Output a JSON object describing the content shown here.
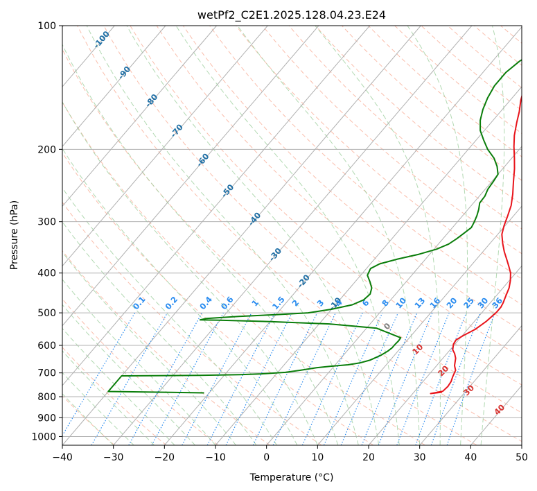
{
  "chart_data": {
    "type": "line",
    "subtype": "skew-T log-P diagram",
    "title": "wetPf2_C2E1.2025.128.04.23.E24",
    "xlabel": "Temperature (°C)",
    "ylabel": "Pressure (hPa)",
    "xlim": [
      -40,
      50
    ],
    "ylim": [
      1050,
      100
    ],
    "y_scale": "log",
    "grid": true,
    "xticks": [
      "−40",
      "−30",
      "−20",
      "−10",
      "0",
      "10",
      "20",
      "30",
      "40",
      "50"
    ],
    "yticks": [
      "100",
      "200",
      "300",
      "400",
      "500",
      "600",
      "700",
      "800",
      "900",
      "1000"
    ],
    "colors": {
      "temperature": "#e8141b",
      "dewpoint": "#0a7d0a",
      "isotherm_label": "#1f6fa5",
      "mixing_ratio": "#2a8cf0",
      "dry_adiabat": "#f8a890",
      "moist_adiabat": "#9fd09f",
      "moist_label": "#d7302d",
      "freezing_label": "#7f7f7f",
      "grid": "#b0b0b0"
    },
    "isotherm_labels": [
      "-100",
      "-90",
      "-80",
      "-70",
      "-60",
      "-50",
      "-40",
      "-30",
      "-20",
      "-10"
    ],
    "mixing_ratio_labels": [
      "0.1",
      "0.2",
      "0.4",
      "0.6",
      "1",
      "1.5",
      "2",
      "3",
      "4",
      "6",
      "8",
      "10",
      "13",
      "16",
      "20",
      "25",
      "30",
      "36"
    ],
    "moist_adiabat_labels": [
      "0",
      "10",
      "20",
      "30",
      "40"
    ],
    "series": [
      {
        "key": "temperature",
        "points": [
          [
            25.5,
            780
          ],
          [
            24.5,
            783
          ],
          [
            23.5,
            786
          ],
          [
            25.5,
            776
          ],
          [
            25.7,
            755
          ],
          [
            25.5,
            735
          ],
          [
            25,
            715
          ],
          [
            24.5,
            690
          ],
          [
            23.5,
            672
          ],
          [
            22.5,
            645
          ],
          [
            21.5,
            628
          ],
          [
            20.5,
            615
          ],
          [
            19.7,
            596
          ],
          [
            19.5,
            582
          ],
          [
            20.2,
            568
          ],
          [
            21.5,
            548
          ],
          [
            22.3,
            525
          ],
          [
            22.8,
            498
          ],
          [
            22.8,
            484
          ],
          [
            22.5,
            472
          ],
          [
            21.9,
            455
          ],
          [
            21.2,
            435
          ],
          [
            20.2,
            417
          ],
          [
            19,
            400
          ],
          [
            17.5,
            385
          ],
          [
            16,
            371
          ],
          [
            14.2,
            355
          ],
          [
            12.5,
            339
          ],
          [
            10.8,
            322
          ],
          [
            9.8,
            307
          ],
          [
            8.9,
            291
          ],
          [
            7.8,
            274
          ],
          [
            6.2,
            257
          ],
          [
            4.3,
            240
          ],
          [
            2.3,
            223
          ],
          [
            0.5,
            210
          ],
          [
            -1.5,
            197
          ],
          [
            -3.3,
            185
          ],
          [
            -5,
            172
          ],
          [
            -6.3,
            162
          ],
          [
            -7.9,
            152
          ],
          [
            -9.3,
            142
          ],
          [
            -11,
            132
          ],
          [
            -12.3,
            127
          ],
          [
            -12.7,
            124
          ],
          [
            -12.3,
            121
          ],
          [
            -11.8,
            118
          ],
          [
            -11,
            114
          ],
          [
            -10,
            110
          ],
          [
            -8.5,
            106
          ],
          [
            -7,
            102
          ],
          [
            -6.5,
            100
          ]
        ]
      },
      {
        "key": "dewpoint",
        "points": [
          [
            -21,
            783
          ],
          [
            -40,
            777
          ],
          [
            -40,
            712
          ],
          [
            -25,
            710
          ],
          [
            -17,
            707
          ],
          [
            -13,
            704
          ],
          [
            -8.5,
            698
          ],
          [
            -6,
            690
          ],
          [
            -3.2,
            680
          ],
          [
            -0.8,
            675
          ],
          [
            2.5,
            669
          ],
          [
            4.5,
            662
          ],
          [
            6,
            652
          ],
          [
            7.3,
            635
          ],
          [
            8,
            620
          ],
          [
            8.3,
            608
          ],
          [
            8.3,
            595
          ],
          [
            8.4,
            585
          ],
          [
            8.3,
            575
          ],
          [
            2,
            545
          ],
          [
            -8,
            532
          ],
          [
            -20,
            525
          ],
          [
            -30,
            521
          ],
          [
            -34,
            520
          ],
          [
            -33,
            516
          ],
          [
            -27,
            510
          ],
          [
            -20,
            505
          ],
          [
            -14,
            500
          ],
          [
            -10,
            490
          ],
          [
            -6.7,
            478
          ],
          [
            -5.3,
            465
          ],
          [
            -5,
            450
          ],
          [
            -5.7,
            435
          ],
          [
            -7.1,
            420
          ],
          [
            -8.7,
            405
          ],
          [
            -9.2,
            390
          ],
          [
            -8.2,
            380
          ],
          [
            -5.5,
            370
          ],
          [
            -2.1,
            360
          ],
          [
            0.5,
            350
          ],
          [
            2,
            340
          ],
          [
            2.7,
            330
          ],
          [
            3.2,
            320
          ],
          [
            3.7,
            310
          ],
          [
            3.3,
            300
          ],
          [
            2.8,
            290
          ],
          [
            2.1,
            280
          ],
          [
            1.2,
            270
          ],
          [
            1.1,
            260
          ],
          [
            0.5,
            250
          ],
          [
            0.3,
            240
          ],
          [
            0,
            230
          ],
          [
            -1.5,
            220
          ],
          [
            -3.5,
            210
          ],
          [
            -6.2,
            200
          ],
          [
            -8.5,
            190
          ],
          [
            -10.8,
            180
          ],
          [
            -12.5,
            170
          ],
          [
            -13.8,
            160
          ],
          [
            -14.8,
            150
          ],
          [
            -15.5,
            140
          ],
          [
            -15.5,
            130
          ],
          [
            -14.7,
            122
          ],
          [
            -13.3,
            116
          ],
          [
            -11.6,
            112
          ],
          [
            -10.5,
            108
          ],
          [
            -10.5,
            104
          ],
          [
            -9.5,
            101
          ],
          [
            -8.8,
            100
          ]
        ]
      }
    ]
  }
}
